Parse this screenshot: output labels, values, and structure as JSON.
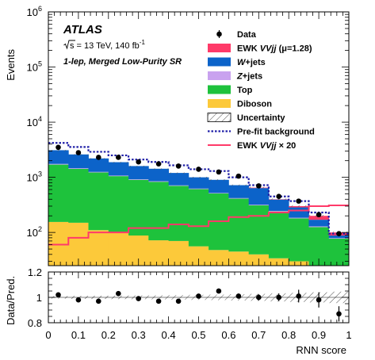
{
  "chart_data": [
    {
      "type": "histogram",
      "panel": "main",
      "ylabel": "Events",
      "ylog": true,
      "ylim": [
        25,
        1000000
      ],
      "xlim": [
        0,
        1
      ],
      "y_tick_labels": [
        {
          "value": 100,
          "base": "10",
          "exp": "2"
        },
        {
          "value": 1000,
          "base": "10",
          "exp": "3"
        },
        {
          "value": 10000,
          "base": "10",
          "exp": "4"
        },
        {
          "value": 100000,
          "base": "10",
          "exp": "5"
        },
        {
          "value": 1000000,
          "base": "10",
          "exp": "6"
        }
      ],
      "annotations": {
        "experiment": "ATLAS",
        "energy_prefix": "s",
        "energy_text": " = 13 TeV, 140 fb",
        "energy_sup": "-1",
        "region": "1-lep, Merged Low-Purity SR"
      },
      "bin_edges": [
        0,
        0.0667,
        0.1333,
        0.2,
        0.2667,
        0.3333,
        0.4,
        0.4667,
        0.5333,
        0.6,
        0.6667,
        0.7333,
        0.8,
        0.8667,
        0.9333,
        1.0
      ],
      "stack": [
        {
          "key": "diboson",
          "color": "#fcc93a",
          "values": [
            155,
            150,
            110,
            100,
            88,
            72,
            70,
            56,
            48,
            45,
            40,
            34,
            30,
            25,
            25
          ]
        },
        {
          "key": "top",
          "color": "#1ec23c",
          "values": [
            1545,
            1270,
            1115,
            950,
            812,
            758,
            630,
            554,
            462,
            365,
            270,
            206,
            150,
            100,
            52
          ]
        },
        {
          "key": "zjets",
          "color": "#c9a2ef",
          "values": [
            50,
            40,
            30,
            25,
            20,
            20,
            15,
            15,
            10,
            10,
            8,
            6,
            5,
            4,
            2
          ]
        },
        {
          "key": "wjets",
          "color": "#0c63c9",
          "values": [
            1350,
            1140,
            945,
            805,
            680,
            580,
            485,
            375,
            380,
            300,
            320,
            149,
            100,
            41,
            9
          ]
        },
        {
          "key": "ewk",
          "color": "#ff3a69",
          "values": [
            0,
            0,
            0,
            0,
            0,
            0,
            0,
            0,
            0,
            0,
            12,
            5,
            15,
            30,
            12
          ]
        }
      ],
      "prefit_background": [
        4200,
        3550,
        2900,
        2500,
        2100,
        1900,
        1650,
        1400,
        1300,
        1000,
        720,
        450,
        370,
        230,
        95
      ],
      "ewk_scaled_x20": [
        60,
        80,
        100,
        100,
        120,
        120,
        140,
        130,
        160,
        190,
        200,
        230,
        250,
        300,
        310
      ],
      "data_points": {
        "x": [
          0.033,
          0.1,
          0.167,
          0.233,
          0.3,
          0.367,
          0.433,
          0.5,
          0.567,
          0.633,
          0.7,
          0.767,
          0.833,
          0.9,
          0.967
        ],
        "y": [
          3500,
          2800,
          2300,
          2300,
          1900,
          1750,
          1600,
          1400,
          1250,
          1050,
          700,
          450,
          370,
          210,
          95
        ],
        "yerr": [
          60,
          53,
          48,
          48,
          44,
          42,
          40,
          37,
          35,
          32,
          26,
          21,
          19,
          14,
          10
        ]
      },
      "legend": {
        "placement": "top-right",
        "entries": [
          {
            "key": "data",
            "style": "marker",
            "label": "Data"
          },
          {
            "key": "ewk",
            "style": "fill",
            "label_a": "EWK ",
            "label_b": "VVjj",
            "label_c": " (μ=1.28)"
          },
          {
            "key": "wjets",
            "style": "fill",
            "label_a": "W",
            "label_b": "+jets"
          },
          {
            "key": "zjets",
            "style": "fill",
            "label_a": "Z",
            "label_b": "+jets"
          },
          {
            "key": "top",
            "style": "fill",
            "label": "Top"
          },
          {
            "key": "diboson",
            "style": "fill",
            "label": "Diboson"
          },
          {
            "key": "uncertainty",
            "style": "hatch",
            "label": "Uncertainty"
          },
          {
            "key": "prefit",
            "style": "dotted",
            "color": "#1f1fa8",
            "label": "Pre-fit background"
          },
          {
            "key": "ewkx20",
            "style": "line",
            "color": "#ff3a69",
            "label_a": "EWK ",
            "label_b": "VVjj",
            "label_c": " × 20"
          }
        ]
      }
    },
    {
      "type": "scatter",
      "panel": "ratio",
      "ylabel": "Data/Pred.",
      "xlabel": "RNN score",
      "ylim": [
        0.8,
        1.2
      ],
      "xlim": [
        0,
        1
      ],
      "y_ticks": [
        "0.8",
        "1",
        "1.2"
      ],
      "x_ticks": [
        "0",
        "0.1",
        "0.2",
        "0.3",
        "0.4",
        "0.5",
        "0.6",
        "0.7",
        "0.8",
        "0.9",
        "1"
      ],
      "x": [
        0.033,
        0.1,
        0.167,
        0.233,
        0.3,
        0.367,
        0.433,
        0.5,
        0.567,
        0.633,
        0.7,
        0.767,
        0.833,
        0.9,
        0.967
      ],
      "y": [
        1.02,
        0.98,
        0.97,
        1.03,
        0.99,
        0.97,
        0.97,
        1.01,
        1.05,
        1.01,
        1.0,
        1.0,
        1.01,
        0.98,
        0.87
      ],
      "yerr": [
        0.012,
        0.012,
        0.012,
        0.012,
        0.012,
        0.012,
        0.012,
        0.015,
        0.02,
        0.02,
        0.025,
        0.03,
        0.05,
        0.06,
        0.06
      ],
      "band_half_width": [
        0.01,
        0.012,
        0.013,
        0.014,
        0.015,
        0.016,
        0.018,
        0.02,
        0.022,
        0.025,
        0.028,
        0.032,
        0.036,
        0.04,
        0.045
      ]
    }
  ]
}
